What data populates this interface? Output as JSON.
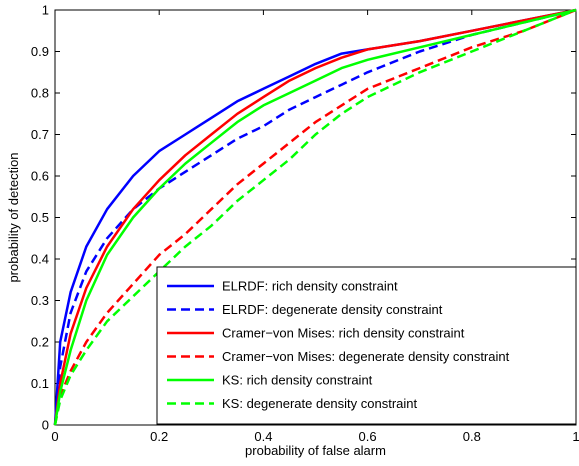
{
  "chart_data": {
    "type": "line",
    "title": "",
    "xlabel": "probability of false alarm",
    "ylabel": "probability of detection",
    "xlim": [
      0,
      1
    ],
    "ylim": [
      0,
      1
    ],
    "xticks": [
      "0",
      "0.2",
      "0.4",
      "0.6",
      "0.8",
      "1"
    ],
    "yticks": [
      "0",
      "0.1",
      "0.2",
      "0.3",
      "0.4",
      "0.5",
      "0.6",
      "0.7",
      "0.8",
      "0.9",
      "1"
    ],
    "grid": false,
    "legend_position": "bottom-right",
    "series": [
      {
        "name": "ELRDF: rich density constraint",
        "color": "#0000ff",
        "dash": "solid",
        "x": [
          0,
          0.01,
          0.03,
          0.06,
          0.1,
          0.15,
          0.2,
          0.25,
          0.3,
          0.35,
          0.4,
          0.45,
          0.5,
          0.55,
          0.6,
          0.7,
          0.8,
          0.9,
          1.0
        ],
        "y": [
          0,
          0.2,
          0.32,
          0.43,
          0.52,
          0.6,
          0.66,
          0.7,
          0.74,
          0.78,
          0.81,
          0.84,
          0.87,
          0.895,
          0.905,
          0.925,
          0.95,
          0.975,
          1.0
        ]
      },
      {
        "name": "ELRDF: degenerate density constraint",
        "color": "#0000ff",
        "dash": "dashed",
        "x": [
          0,
          0.01,
          0.03,
          0.06,
          0.1,
          0.15,
          0.2,
          0.25,
          0.3,
          0.35,
          0.4,
          0.45,
          0.5,
          0.55,
          0.6,
          0.7,
          0.8,
          0.9,
          1.0
        ],
        "y": [
          0,
          0.14,
          0.27,
          0.37,
          0.45,
          0.52,
          0.57,
          0.61,
          0.65,
          0.69,
          0.72,
          0.76,
          0.79,
          0.82,
          0.85,
          0.9,
          0.94,
          0.97,
          1.0
        ]
      },
      {
        "name": "Cramer−von Mises: rich density constraint",
        "color": "#ff0000",
        "dash": "solid",
        "x": [
          0,
          0.01,
          0.03,
          0.06,
          0.1,
          0.15,
          0.2,
          0.25,
          0.3,
          0.35,
          0.4,
          0.45,
          0.5,
          0.55,
          0.6,
          0.7,
          0.8,
          0.9,
          1.0
        ],
        "y": [
          0,
          0.1,
          0.22,
          0.33,
          0.43,
          0.52,
          0.59,
          0.65,
          0.7,
          0.75,
          0.79,
          0.83,
          0.86,
          0.885,
          0.905,
          0.925,
          0.95,
          0.975,
          1.0
        ]
      },
      {
        "name": "Cramer−von Mises: degenerate density constraint",
        "color": "#ff0000",
        "dash": "dashed",
        "x": [
          0,
          0.01,
          0.03,
          0.06,
          0.1,
          0.15,
          0.2,
          0.25,
          0.3,
          0.35,
          0.4,
          0.45,
          0.5,
          0.55,
          0.6,
          0.7,
          0.8,
          0.9,
          1.0
        ],
        "y": [
          0,
          0.07,
          0.13,
          0.2,
          0.27,
          0.34,
          0.41,
          0.46,
          0.52,
          0.58,
          0.63,
          0.68,
          0.73,
          0.77,
          0.81,
          0.86,
          0.91,
          0.95,
          1.0
        ]
      },
      {
        "name": "KS: rich density constraint",
        "color": "#00ff00",
        "dash": "solid",
        "x": [
          0,
          0.01,
          0.03,
          0.06,
          0.1,
          0.15,
          0.2,
          0.25,
          0.3,
          0.35,
          0.4,
          0.45,
          0.5,
          0.55,
          0.6,
          0.7,
          0.8,
          0.9,
          1.0
        ],
        "y": [
          0,
          0.08,
          0.18,
          0.3,
          0.41,
          0.5,
          0.57,
          0.63,
          0.68,
          0.73,
          0.77,
          0.8,
          0.83,
          0.86,
          0.88,
          0.91,
          0.94,
          0.97,
          1.0
        ]
      },
      {
        "name": "KS: degenerate density constraint",
        "color": "#00ff00",
        "dash": "dashed",
        "x": [
          0,
          0.01,
          0.03,
          0.06,
          0.1,
          0.15,
          0.2,
          0.25,
          0.3,
          0.35,
          0.4,
          0.45,
          0.5,
          0.55,
          0.6,
          0.7,
          0.8,
          0.9,
          1.0
        ],
        "y": [
          0,
          0.06,
          0.12,
          0.18,
          0.25,
          0.31,
          0.37,
          0.43,
          0.48,
          0.54,
          0.59,
          0.64,
          0.7,
          0.75,
          0.79,
          0.85,
          0.9,
          0.95,
          1.0
        ]
      }
    ]
  }
}
